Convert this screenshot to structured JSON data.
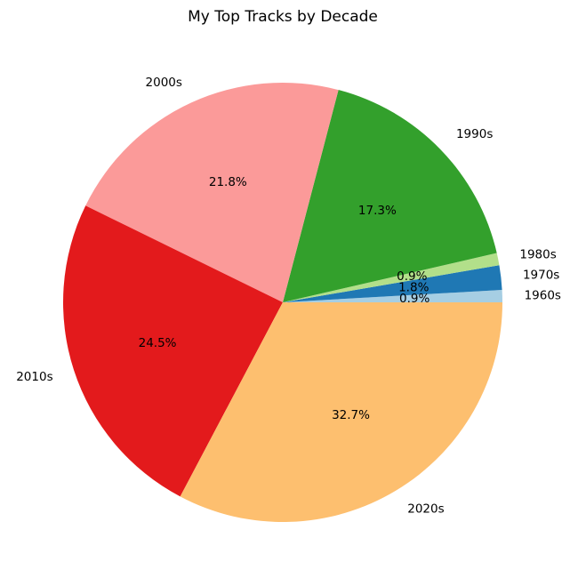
{
  "chart_data": {
    "type": "pie",
    "title": "My Top Tracks by Decade",
    "start_angle_deg": 0,
    "direction": "counterclockwise",
    "slices": [
      {
        "label": "1960s",
        "value": 0.9,
        "pct_label": "0.9%",
        "color": "#a6cee3"
      },
      {
        "label": "1970s",
        "value": 1.8,
        "pct_label": "1.8%",
        "color": "#1f78b4"
      },
      {
        "label": "1980s",
        "value": 0.9,
        "pct_label": "0.9%",
        "color": "#b2df8a"
      },
      {
        "label": "1990s",
        "value": 17.3,
        "pct_label": "17.3%",
        "color": "#33a02c"
      },
      {
        "label": "2000s",
        "value": 21.8,
        "pct_label": "21.8%",
        "color": "#fb9a99"
      },
      {
        "label": "2010s",
        "value": 24.5,
        "pct_label": "24.5%",
        "color": "#e31a1c"
      },
      {
        "label": "2020s",
        "value": 32.7,
        "pct_label": "32.7%",
        "color": "#fdbf6f"
      }
    ]
  }
}
